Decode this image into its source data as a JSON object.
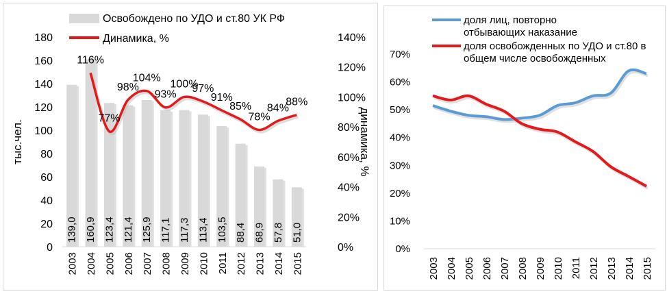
{
  "chart_data": [
    {
      "type": "bar",
      "categories": [
        "2003",
        "2004",
        "2005",
        "2006",
        "2007",
        "2008",
        "2009",
        "2010",
        "2011",
        "2012",
        "2013",
        "2014",
        "2015"
      ],
      "series": [
        {
          "name": "Освобождено по УДО и ст.80 УК РФ",
          "type": "bar",
          "axis": "left",
          "values": [
            139.0,
            160.9,
            123.4,
            121.4,
            125.9,
            117.1,
            117.3,
            113.4,
            103.5,
            88.4,
            68.9,
            57.8,
            51.0
          ],
          "labels": [
            "139,0",
            "160,9",
            "123,4",
            "121,4",
            "125,9",
            "117,1",
            "117,3",
            "113,4",
            "103,5",
            "88,4",
            "68,9",
            "57,8",
            "51,0"
          ],
          "color": "#d9d9d9"
        },
        {
          "name": "Динамика, %",
          "type": "line",
          "axis": "right",
          "values": [
            null,
            116,
            77,
            98,
            104,
            93,
            100,
            97,
            91,
            85,
            78,
            84,
            88
          ],
          "labels": [
            "",
            "116%",
            "77%",
            "98%",
            "104%",
            "93%",
            "100%",
            "97%",
            "91%",
            "85%",
            "78%",
            "84%",
            "88%"
          ],
          "color": "#e31a1c"
        }
      ],
      "ylabel": "тыс.чел.",
      "y2label": "динамика, %",
      "ylim": [
        0,
        180
      ],
      "yticks": [
        "0",
        "20",
        "40",
        "60",
        "80",
        "100",
        "120",
        "140",
        "160",
        "180"
      ],
      "y2lim": [
        0,
        140
      ],
      "y2ticks": [
        "0%",
        "20%",
        "40%",
        "60%",
        "80%",
        "100%",
        "120%",
        "140%"
      ],
      "grid": false,
      "legend_position": "top"
    },
    {
      "type": "line",
      "categories": [
        "2003",
        "2004",
        "2005",
        "2006",
        "2007",
        "2008",
        "2009",
        "2010",
        "2011",
        "2012",
        "2013",
        "2014",
        "2015"
      ],
      "series": [
        {
          "name": "доля лиц, повторно отбывающих наказание",
          "values": [
            51.5,
            49.5,
            48,
            47.5,
            46.5,
            47,
            48,
            51.5,
            52.5,
            55,
            56,
            64,
            63
          ],
          "color": "#5b9bd5"
        },
        {
          "name": "доля освобожденных по УДО и ст.80 в общем числе освобожденных",
          "values": [
            55,
            53.5,
            55,
            52,
            49.5,
            45,
            43,
            42,
            38.5,
            35,
            29.5,
            26,
            22.5
          ],
          "color": "#e31a1c"
        }
      ],
      "ylim": [
        0,
        70
      ],
      "yticks": [
        "0%",
        "10%",
        "20%",
        "30%",
        "40%",
        "50%",
        "60%",
        "70%"
      ],
      "grid": false,
      "legend_position": "top"
    }
  ]
}
